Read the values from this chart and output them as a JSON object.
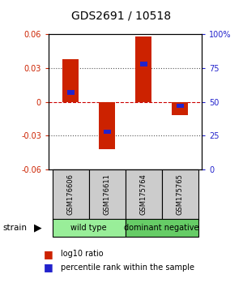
{
  "title": "GDS2691 / 10518",
  "samples": [
    "GSM176606",
    "GSM176611",
    "GSM175764",
    "GSM175765"
  ],
  "log10_ratio": [
    0.038,
    -0.042,
    0.058,
    -0.012
  ],
  "percentile_rank": [
    57,
    28,
    78,
    47
  ],
  "ylim_left": [
    -0.06,
    0.06
  ],
  "ylim_right": [
    0,
    100
  ],
  "yticks_left": [
    -0.06,
    -0.03,
    0.0,
    0.03,
    0.06
  ],
  "yticks_right": [
    0,
    25,
    50,
    75,
    100
  ],
  "ytick_labels_left": [
    "-0.06",
    "-0.03",
    "0",
    "0.03",
    "0.06"
  ],
  "ytick_labels_right": [
    "0",
    "25",
    "50",
    "75",
    "100%"
  ],
  "bar_color_red": "#cc2200",
  "bar_color_blue": "#2222cc",
  "bar_width": 0.45,
  "blue_bar_width": 0.2,
  "blue_bar_height": 0.004,
  "background_color": "#ffffff",
  "zero_line_color": "#cc0000",
  "dotted_line_color": "#555555",
  "label_bg_color": "#cccccc",
  "group1_color": "#99ee99",
  "group2_color": "#66cc66",
  "legend_red_label": "log10 ratio",
  "legend_blue_label": "percentile rank within the sample"
}
